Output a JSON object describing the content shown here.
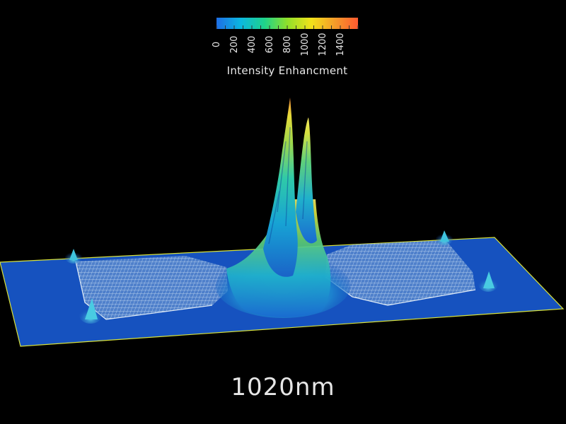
{
  "colorbar": {
    "title": "Intensity Enhancment",
    "tick_labels": [
      "0",
      "200",
      "400",
      "600",
      "800",
      "1000",
      "1200",
      "1400"
    ],
    "tick_values": [
      0,
      200,
      400,
      600,
      800,
      1000,
      1200,
      1400
    ],
    "min": 0,
    "max": 1600,
    "colors": [
      "#1e6ee6",
      "#0bb7e0",
      "#1fd38a",
      "#8fe02a",
      "#f2e21a",
      "#f59a2a",
      "#ff5a30"
    ]
  },
  "caption": "1020nm",
  "palette": {
    "background": "#000000",
    "plane": "#1652bf",
    "plane_edge": "#d8e23a",
    "mesh": "#cfe4f5"
  }
}
